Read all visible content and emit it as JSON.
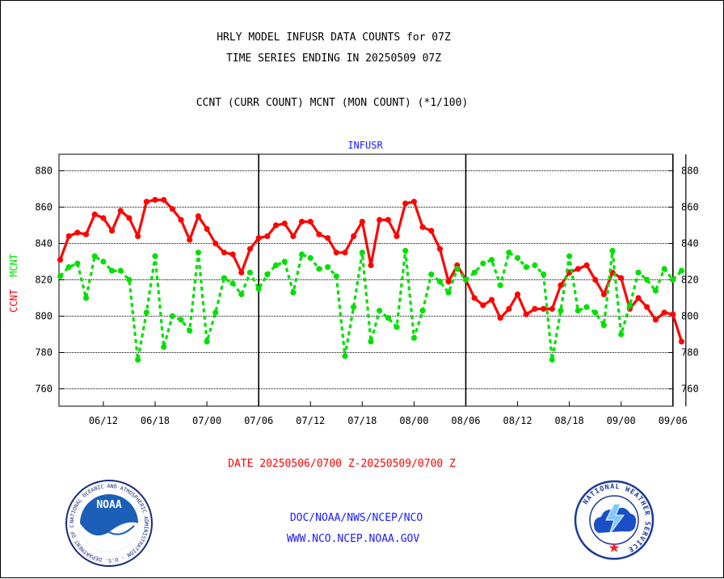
{
  "header": {
    "title_line1": "HRLY MODEL INFUSR DATA COUNTS for 07Z",
    "title_line2": "TIME SERIES ENDING IN 20250509 07Z",
    "subtitle": "CCNT (CURR COUNT) MCNT (MON COUNT) (*1/100)"
  },
  "footer": {
    "date_range": "DATE 20250506/0700 Z-20250509/0700 Z",
    "link1": "DOC/NOAA/NWS/NCEP/NCO",
    "link2": "WWW.NCO.NCEP.NOAA.GOV"
  },
  "logos": {
    "noaa_text": "NOAA",
    "noaa_ring": "NATIONAL OCEANIC AND ATMOSPHERIC ADMINISTRATION · U.S. DEPARTMENT OF COMMERCE",
    "nws_ring": "NATIONAL WEATHER SERVICE"
  },
  "colors": {
    "ccnt": "#ff0000",
    "mcnt": "#00e000",
    "label_blue": "#1a1aff",
    "grid": "#000000"
  },
  "chart_data": {
    "type": "line",
    "title": "INFUSR",
    "ylabel_left": [
      "CCNT",
      "MCNT"
    ],
    "ylim": [
      750,
      890
    ],
    "yticks": [
      760,
      780,
      800,
      820,
      840,
      860,
      880
    ],
    "xlim": [
      0,
      95.5
    ],
    "xtick_labels": [
      "06/12",
      "06/18",
      "07/00",
      "07/06",
      "07/12",
      "07/18",
      "08/00",
      "08/06",
      "08/12",
      "08/18",
      "09/00",
      "09/06"
    ],
    "xtick_hours": [
      5,
      11,
      17,
      23,
      29,
      35,
      41,
      47,
      53,
      59,
      65,
      71
    ],
    "day_boundaries": [
      23,
      47,
      71
    ],
    "grid": true,
    "series": [
      {
        "name": "CCNT",
        "style": "solid",
        "x": [
          0,
          1,
          2,
          3,
          4,
          5,
          6,
          7,
          8,
          9,
          10,
          11,
          12,
          13,
          14,
          15,
          16,
          17,
          18,
          19,
          20,
          21,
          22,
          23,
          24,
          25,
          26,
          27,
          28,
          29,
          30,
          31,
          32,
          33,
          34,
          35,
          36,
          37,
          38,
          39,
          40,
          41,
          42,
          43,
          44,
          45,
          46,
          47,
          48,
          49,
          50,
          51,
          52,
          53,
          54,
          55,
          56,
          57,
          58,
          59,
          60,
          61,
          62,
          63,
          64,
          65,
          66,
          67,
          68,
          69,
          70,
          71,
          72
        ],
        "values": [
          831,
          844,
          846,
          845,
          856,
          854,
          847,
          858,
          854,
          844,
          863,
          864,
          864,
          859,
          853,
          842,
          855,
          848,
          840,
          835,
          834,
          824,
          837,
          843,
          844,
          850,
          851,
          844,
          852,
          852,
          845,
          843,
          835,
          835,
          844,
          852,
          828,
          853,
          853,
          844,
          862,
          863,
          849,
          847,
          837,
          819,
          828,
          820,
          810,
          806,
          809,
          799,
          804,
          812,
          801,
          804,
          804,
          804,
          817,
          824,
          826,
          828,
          820,
          812,
          824,
          821,
          804,
          810,
          805,
          798,
          802,
          801,
          786
        ]
      },
      {
        "name": "MCNT",
        "style": "dashed",
        "x": [
          0,
          1,
          2,
          3,
          4,
          5,
          6,
          7,
          8,
          9,
          10,
          11,
          12,
          13,
          14,
          15,
          16,
          17,
          18,
          19,
          20,
          21,
          22,
          23,
          24,
          25,
          26,
          27,
          28,
          29,
          30,
          31,
          32,
          33,
          34,
          35,
          36,
          37,
          38,
          39,
          40,
          41,
          42,
          43,
          44,
          45,
          46,
          47,
          48,
          49,
          50,
          51,
          52,
          53,
          54,
          55,
          56,
          57,
          58,
          59,
          60,
          61,
          62,
          63,
          64,
          65,
          66,
          67,
          68,
          69,
          70,
          71,
          72
        ],
        "values": [
          822,
          827,
          829,
          810,
          833,
          830,
          825,
          825,
          820,
          776,
          802,
          833,
          783,
          800,
          798,
          792,
          835,
          786,
          802,
          821,
          818,
          812,
          824,
          815,
          823,
          828,
          830,
          813,
          834,
          832,
          826,
          827,
          822,
          778,
          805,
          835,
          786,
          803,
          799,
          794,
          836,
          788,
          803,
          823,
          819,
          813,
          826,
          820,
          824,
          829,
          831,
          817,
          835,
          832,
          827,
          828,
          823,
          776,
          803,
          833,
          803,
          805,
          802,
          795,
          836,
          790,
          806,
          824,
          820,
          814,
          826,
          820,
          825
        ]
      }
    ]
  }
}
